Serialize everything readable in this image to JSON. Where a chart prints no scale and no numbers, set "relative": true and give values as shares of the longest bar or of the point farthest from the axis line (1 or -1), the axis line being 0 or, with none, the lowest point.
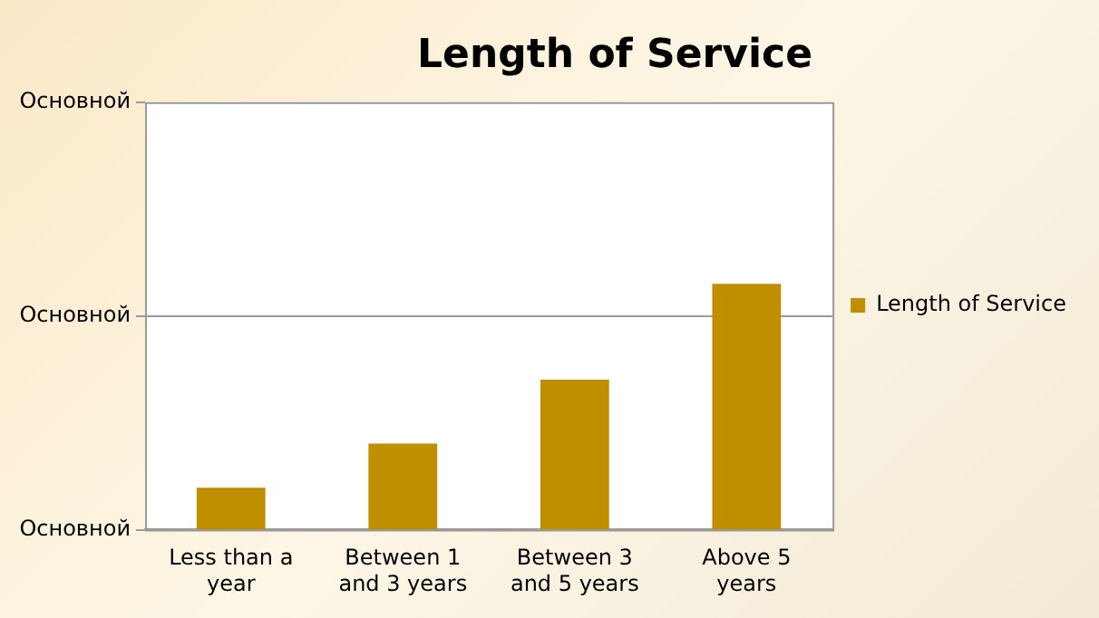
{
  "chart_data": {
    "type": "bar",
    "title": "Length of Service",
    "categories": [
      "Less than a year",
      "Between 1 and 3 years",
      "Between 3 and 5 years",
      "Above 5 years"
    ],
    "series": [
      {
        "name": "Length of Service",
        "color": "#bf8f00",
        "values": [
          0.17,
          0.35,
          0.61,
          1
        ]
      }
    ],
    "relative": true,
    "annotations": [
      "Основной",
      "Основной",
      "Основной"
    ],
    "ref_lines": [
      {
        "axis": "y",
        "value": 0.87
      }
    ],
    "legend": "right"
  }
}
